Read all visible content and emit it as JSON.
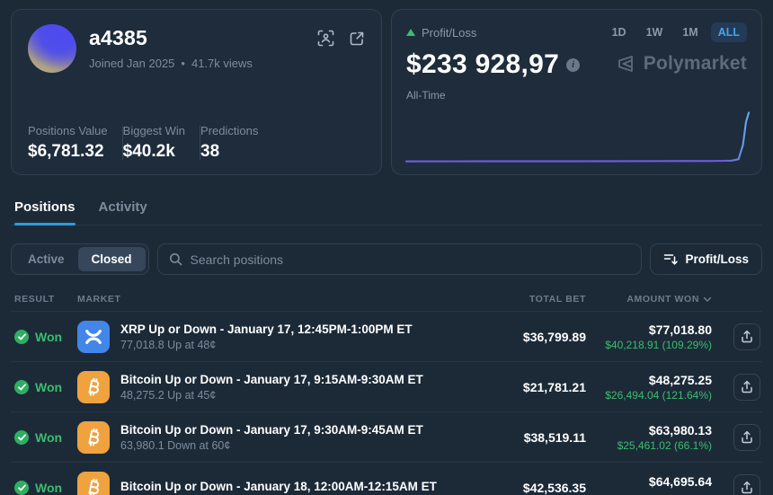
{
  "profile": {
    "name": "a4385",
    "joined": "Joined Jan 2025",
    "separator": "•",
    "views": "41.7k views",
    "stats": [
      {
        "label": "Positions Value",
        "value": "$6,781.32"
      },
      {
        "label": "Biggest Win",
        "value": "$40.2k"
      },
      {
        "label": "Predictions",
        "value": "38"
      }
    ]
  },
  "pnl": {
    "label": "Profit/Loss",
    "value": "$233 928,97",
    "period_label": "All-Time",
    "ranges": [
      "1D",
      "1W",
      "1M",
      "ALL"
    ],
    "active_range": "ALL",
    "brand": "Polymarket"
  },
  "chart_data": {
    "type": "line",
    "title": "Profit/Loss All-Time",
    "xlabel": "",
    "ylabel": "Profit/Loss ($)",
    "ylim": [
      0,
      240000
    ],
    "grid": false,
    "legend": "none",
    "line_color": "#6a5cd8",
    "line_tip_color": "#67a8f0",
    "points": [
      [
        0,
        1800
      ],
      [
        25,
        2000
      ],
      [
        50,
        2300
      ],
      [
        75,
        2800
      ],
      [
        90,
        3600
      ],
      [
        95,
        5200
      ],
      [
        97,
        12000
      ],
      [
        98.3,
        80000
      ],
      [
        99.2,
        190000
      ],
      [
        100,
        233928.97
      ]
    ]
  },
  "tabs": [
    {
      "label": "Positions",
      "active": true
    },
    {
      "label": "Activity",
      "active": false
    }
  ],
  "filters": {
    "segments": [
      "Active",
      "Closed"
    ],
    "active_segment": "Closed",
    "search_placeholder": "Search positions",
    "sort_label": "Profit/Loss"
  },
  "table": {
    "headers": {
      "result": "RESULT",
      "market": "MARKET",
      "total_bet": "TOTAL BET",
      "amount_won": "AMOUNT WON"
    },
    "rows": [
      {
        "result": "Won",
        "asset": "xrp",
        "title": "XRP Up or Down - January 17, 12:45PM-1:00PM ET",
        "subtitle": "77,018.8 Up at 48¢",
        "total_bet": "$36,799.89",
        "amount_won": "$77,018.80",
        "profit": "$40,218.91 (109.29%)"
      },
      {
        "result": "Won",
        "asset": "btc",
        "title": "Bitcoin Up or Down - January 17, 9:15AM-9:30AM ET",
        "subtitle": "48,275.2 Up at 45¢",
        "total_bet": "$21,781.21",
        "amount_won": "$48,275.25",
        "profit": "$26,494.04 (121.64%)"
      },
      {
        "result": "Won",
        "asset": "btc",
        "title": "Bitcoin Up or Down - January 17, 9:30AM-9:45AM ET",
        "subtitle": "63,980.1 Down at 60¢",
        "total_bet": "$38,519.11",
        "amount_won": "$63,980.13",
        "profit": "$25,461.02 (66.1%)"
      },
      {
        "result": "Won",
        "asset": "btc",
        "title": "Bitcoin Up or Down - January 18, 12:00AM-12:15AM ET",
        "subtitle": "",
        "total_bet": "$42,536.35",
        "amount_won": "$64,695.64",
        "profit": ""
      }
    ]
  },
  "colors": {
    "background": "#1c2a38",
    "accent_blue": "#3d9cec",
    "positive_green": "#3bbd6e",
    "chart_purple": "#6a5cd8",
    "xrp_blue": "#4286e8",
    "btc_orange": "#efa23e"
  },
  "icons": {
    "profile": [
      "qr-scan-icon",
      "external-link-icon"
    ],
    "pnl": [
      "trend-up-triangle-icon",
      "info-icon",
      "polymarket-logo-icon"
    ],
    "filters": [
      "search-icon",
      "sort-icon"
    ],
    "table": [
      "chevron-down-icon",
      "check-circle-icon",
      "xrp-icon",
      "btc-icon",
      "share-icon"
    ]
  }
}
